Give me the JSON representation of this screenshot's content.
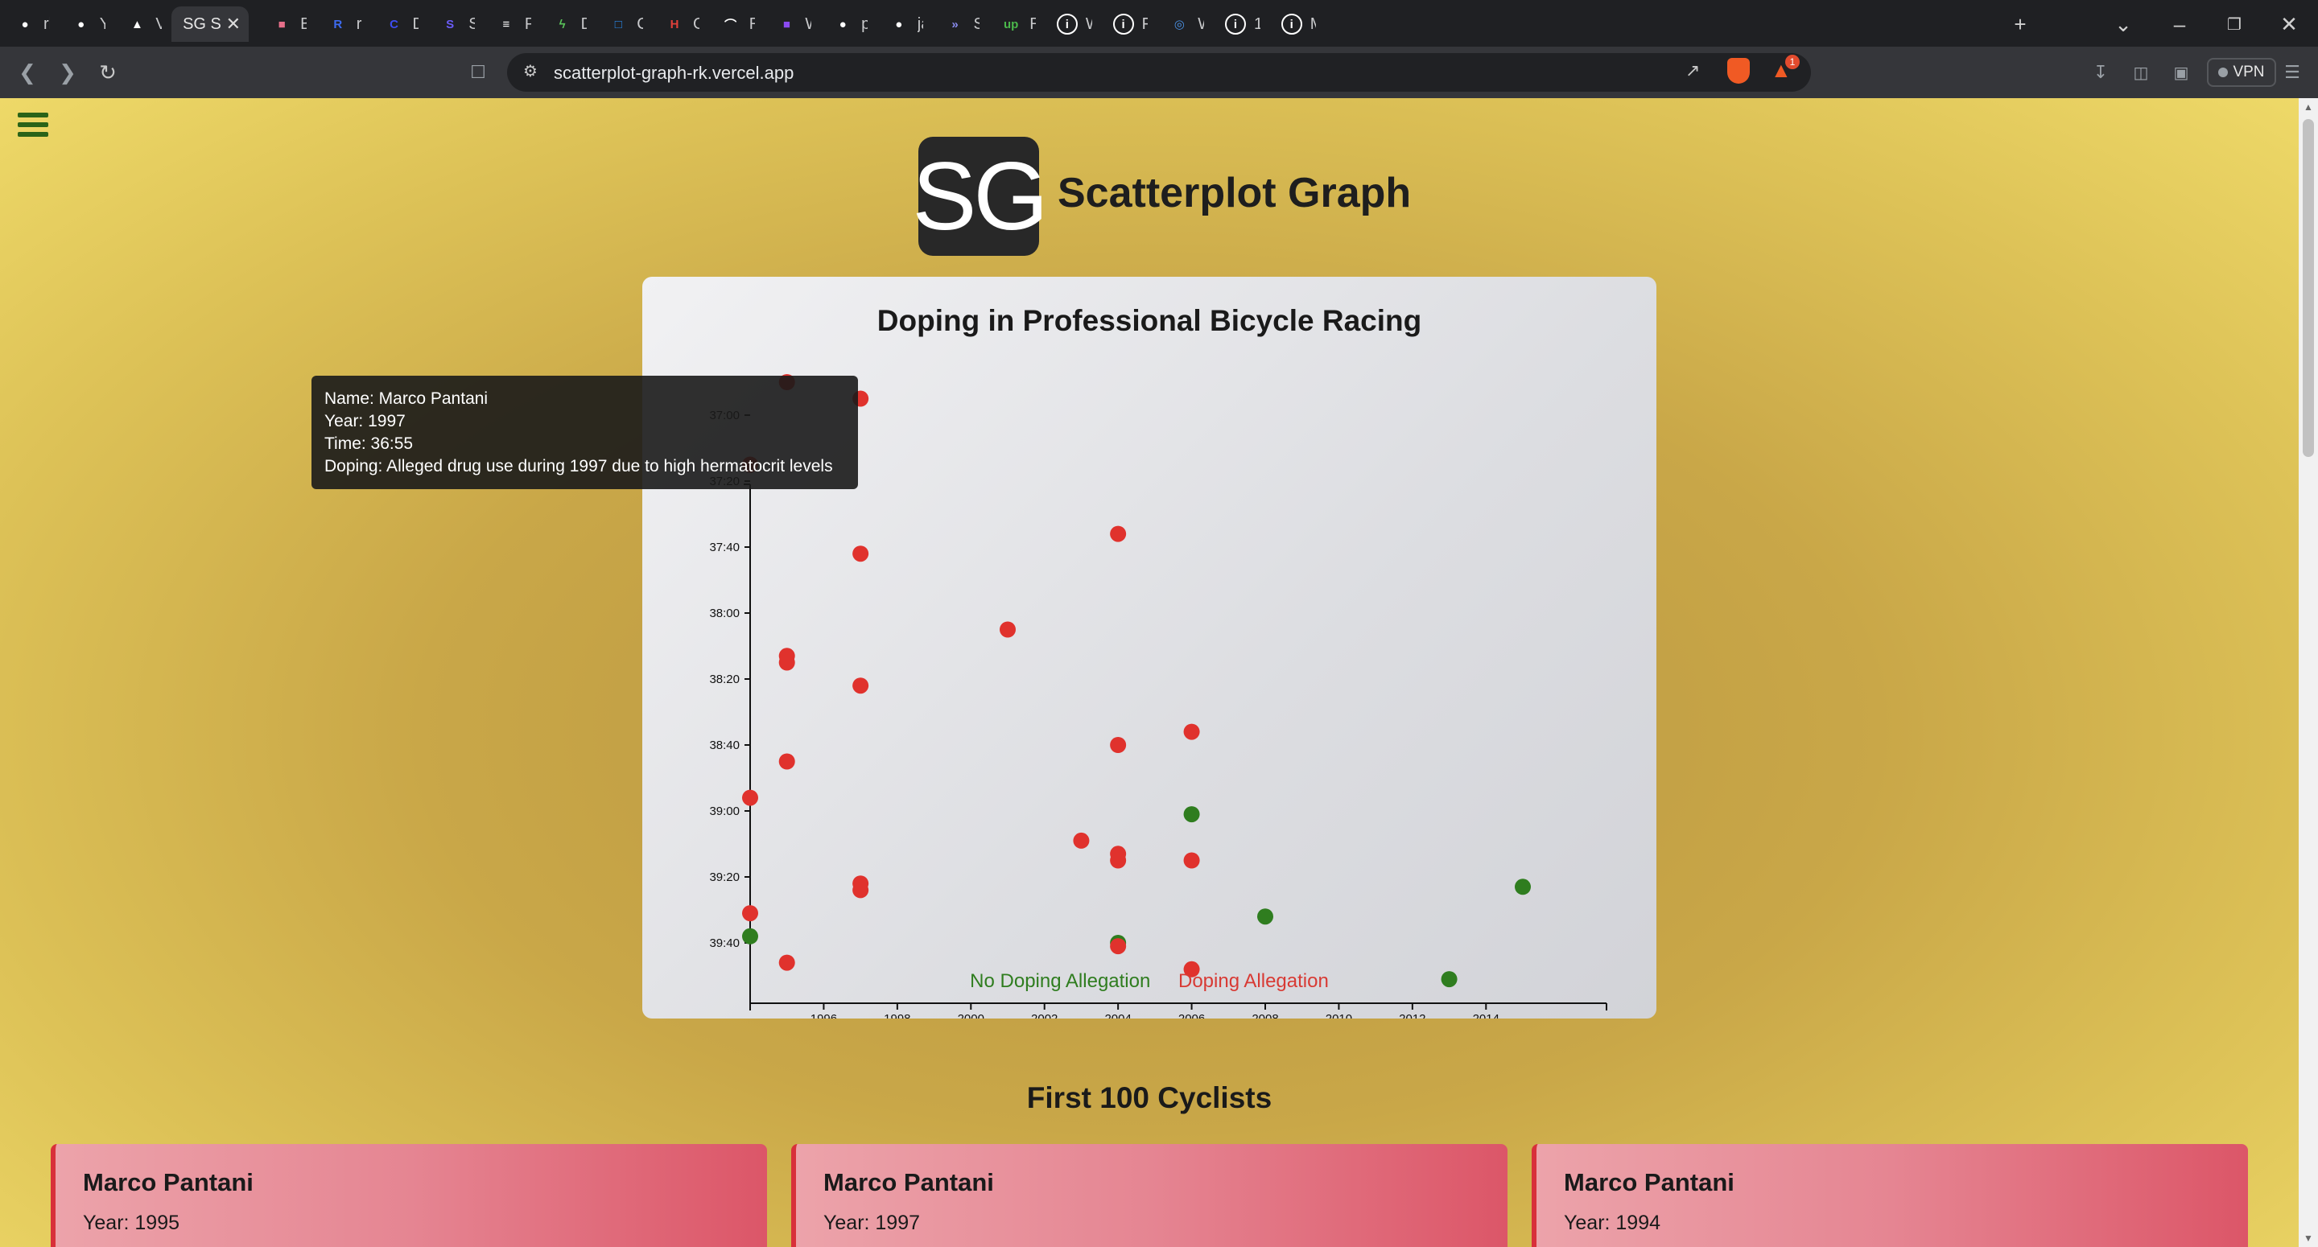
{
  "browser": {
    "tabs": [
      {
        "title": "rkgit",
        "icon": "github-icon",
        "color": "#ffffff"
      },
      {
        "title": "Your",
        "icon": "github-icon",
        "color": "#ffffff"
      },
      {
        "title": "Verce",
        "icon": "vercel-icon",
        "color": "#ffffff"
      },
      {
        "title": "SG S",
        "icon": "sg-icon",
        "color": "#ffffff",
        "active": true
      },
      {
        "title": "Bar C",
        "icon": "chart-icon",
        "color": "#e76f8a"
      },
      {
        "title": "rkgit",
        "icon": "r-icon",
        "color": "#3d6bf0"
      },
      {
        "title": "Dash",
        "icon": "c-icon",
        "color": "#3d4cf0"
      },
      {
        "title": "Strip",
        "icon": "stripe-icon",
        "color": "#6a5cf6"
      },
      {
        "title": "Pricir",
        "icon": "pricing-icon",
        "color": "#ffffff"
      },
      {
        "title": "Dash",
        "icon": "dash-icon",
        "color": "#5ac45a"
      },
      {
        "title": "Crisp",
        "icon": "crisp-icon",
        "color": "#2a8cf0"
      },
      {
        "title": "Grad",
        "icon": "h-icon",
        "color": "#e0403a"
      },
      {
        "title": "Rend",
        "icon": "render-icon",
        "color": "#ffffff"
      },
      {
        "title": "Welc",
        "icon": "twitch-icon",
        "color": "#8a4af0"
      },
      {
        "title": "piyus",
        "icon": "github-icon",
        "color": "#ffffff"
      },
      {
        "title": "jame",
        "icon": "github-icon",
        "color": "#ffffff"
      },
      {
        "title": "Smol",
        "icon": "smol-icon",
        "color": "#8a8cf0"
      },
      {
        "title": "Raj K",
        "icon": "up-icon",
        "color": "#4bb84b"
      },
      {
        "title": "Worl",
        "icon": "info-icon",
        "color": "#ffffff"
      },
      {
        "title": "Full S",
        "icon": "info-icon",
        "color": "#ffffff"
      },
      {
        "title": "Welc",
        "icon": "globe-icon",
        "color": "#4a90e2"
      },
      {
        "title": "12 Fr",
        "icon": "info-icon",
        "color": "#ffffff"
      },
      {
        "title": "My Ir",
        "icon": "info-icon",
        "color": "#ffffff"
      }
    ],
    "url": "scatterplot-graph-rk.vercel.app",
    "vpn_label": "VPN",
    "brave_badge": "1"
  },
  "header": {
    "logo_text": "SG",
    "title": "Scatterplot Graph"
  },
  "chart_data": {
    "type": "scatter",
    "title": "Doping in Professional Bicycle Racing",
    "xlabel": "",
    "ylabel": "",
    "x_ticks": [
      "1996",
      "1998",
      "2000",
      "2002",
      "2004",
      "2006",
      "2008",
      "2010",
      "2012",
      "2014"
    ],
    "y_ticks": [
      "37:00",
      "37:20",
      "37:40",
      "38:00",
      "38:20",
      "38:40",
      "39:00",
      "39:20",
      "39:40"
    ],
    "x_range": [
      1994,
      2015
    ],
    "y_range_seconds": [
      2210,
      2390
    ],
    "y_axis_reversed": true,
    "colors": {
      "doping": "#e0322d",
      "no_doping": "#2f7d1f"
    },
    "legend": [
      {
        "label": "No Doping Allegation",
        "color": "#2f7d1f"
      },
      {
        "label": "Doping Allegation",
        "color": "#d83a34"
      }
    ],
    "points": [
      {
        "year": 1995,
        "seconds": 2210,
        "doping": true
      },
      {
        "year": 1997,
        "seconds": 2215,
        "doping": true
      },
      {
        "year": 1994,
        "seconds": 2235,
        "doping": true
      },
      {
        "year": 2004,
        "seconds": 2256,
        "doping": true
      },
      {
        "year": 1997,
        "seconds": 2262,
        "doping": true
      },
      {
        "year": 2001,
        "seconds": 2285,
        "doping": true
      },
      {
        "year": 1995,
        "seconds": 2293,
        "doping": true
      },
      {
        "year": 1995,
        "seconds": 2295,
        "doping": true
      },
      {
        "year": 1997,
        "seconds": 2302,
        "doping": true
      },
      {
        "year": 2006,
        "seconds": 2316,
        "doping": true
      },
      {
        "year": 2004,
        "seconds": 2320,
        "doping": true
      },
      {
        "year": 1995,
        "seconds": 2325,
        "doping": true
      },
      {
        "year": 1994,
        "seconds": 2336,
        "doping": true
      },
      {
        "year": 2006,
        "seconds": 2341,
        "doping": false
      },
      {
        "year": 2003,
        "seconds": 2349,
        "doping": true
      },
      {
        "year": 2004,
        "seconds": 2353,
        "doping": true
      },
      {
        "year": 2004,
        "seconds": 2355,
        "doping": true
      },
      {
        "year": 2006,
        "seconds": 2355,
        "doping": true
      },
      {
        "year": 1997,
        "seconds": 2362,
        "doping": true
      },
      {
        "year": 1997,
        "seconds": 2364,
        "doping": true
      },
      {
        "year": 2015,
        "seconds": 2363,
        "doping": false
      },
      {
        "year": 1994,
        "seconds": 2371,
        "doping": true
      },
      {
        "year": 2008,
        "seconds": 2372,
        "doping": false
      },
      {
        "year": 1994,
        "seconds": 2378,
        "doping": false
      },
      {
        "year": 2004,
        "seconds": 2380,
        "doping": false
      },
      {
        "year": 2004,
        "seconds": 2381,
        "doping": true
      },
      {
        "year": 1995,
        "seconds": 2386,
        "doping": true
      },
      {
        "year": 2006,
        "seconds": 2388,
        "doping": true
      },
      {
        "year": 2013,
        "seconds": 2391,
        "doping": false
      }
    ]
  },
  "tooltip": {
    "name": "Name: Marco Pantani",
    "year": "Year: 1997",
    "time": "Time: 36:55",
    "doping": "Doping: Alleged drug use during 1997 due to high hermatocrit levels"
  },
  "cyclists": {
    "heading": "First 100 Cyclists",
    "cards": [
      {
        "name": "Marco Pantani",
        "year": "Year: 1995"
      },
      {
        "name": "Marco Pantani",
        "year": "Year: 1997"
      },
      {
        "name": "Marco Pantani",
        "year": "Year: 1994"
      }
    ]
  }
}
